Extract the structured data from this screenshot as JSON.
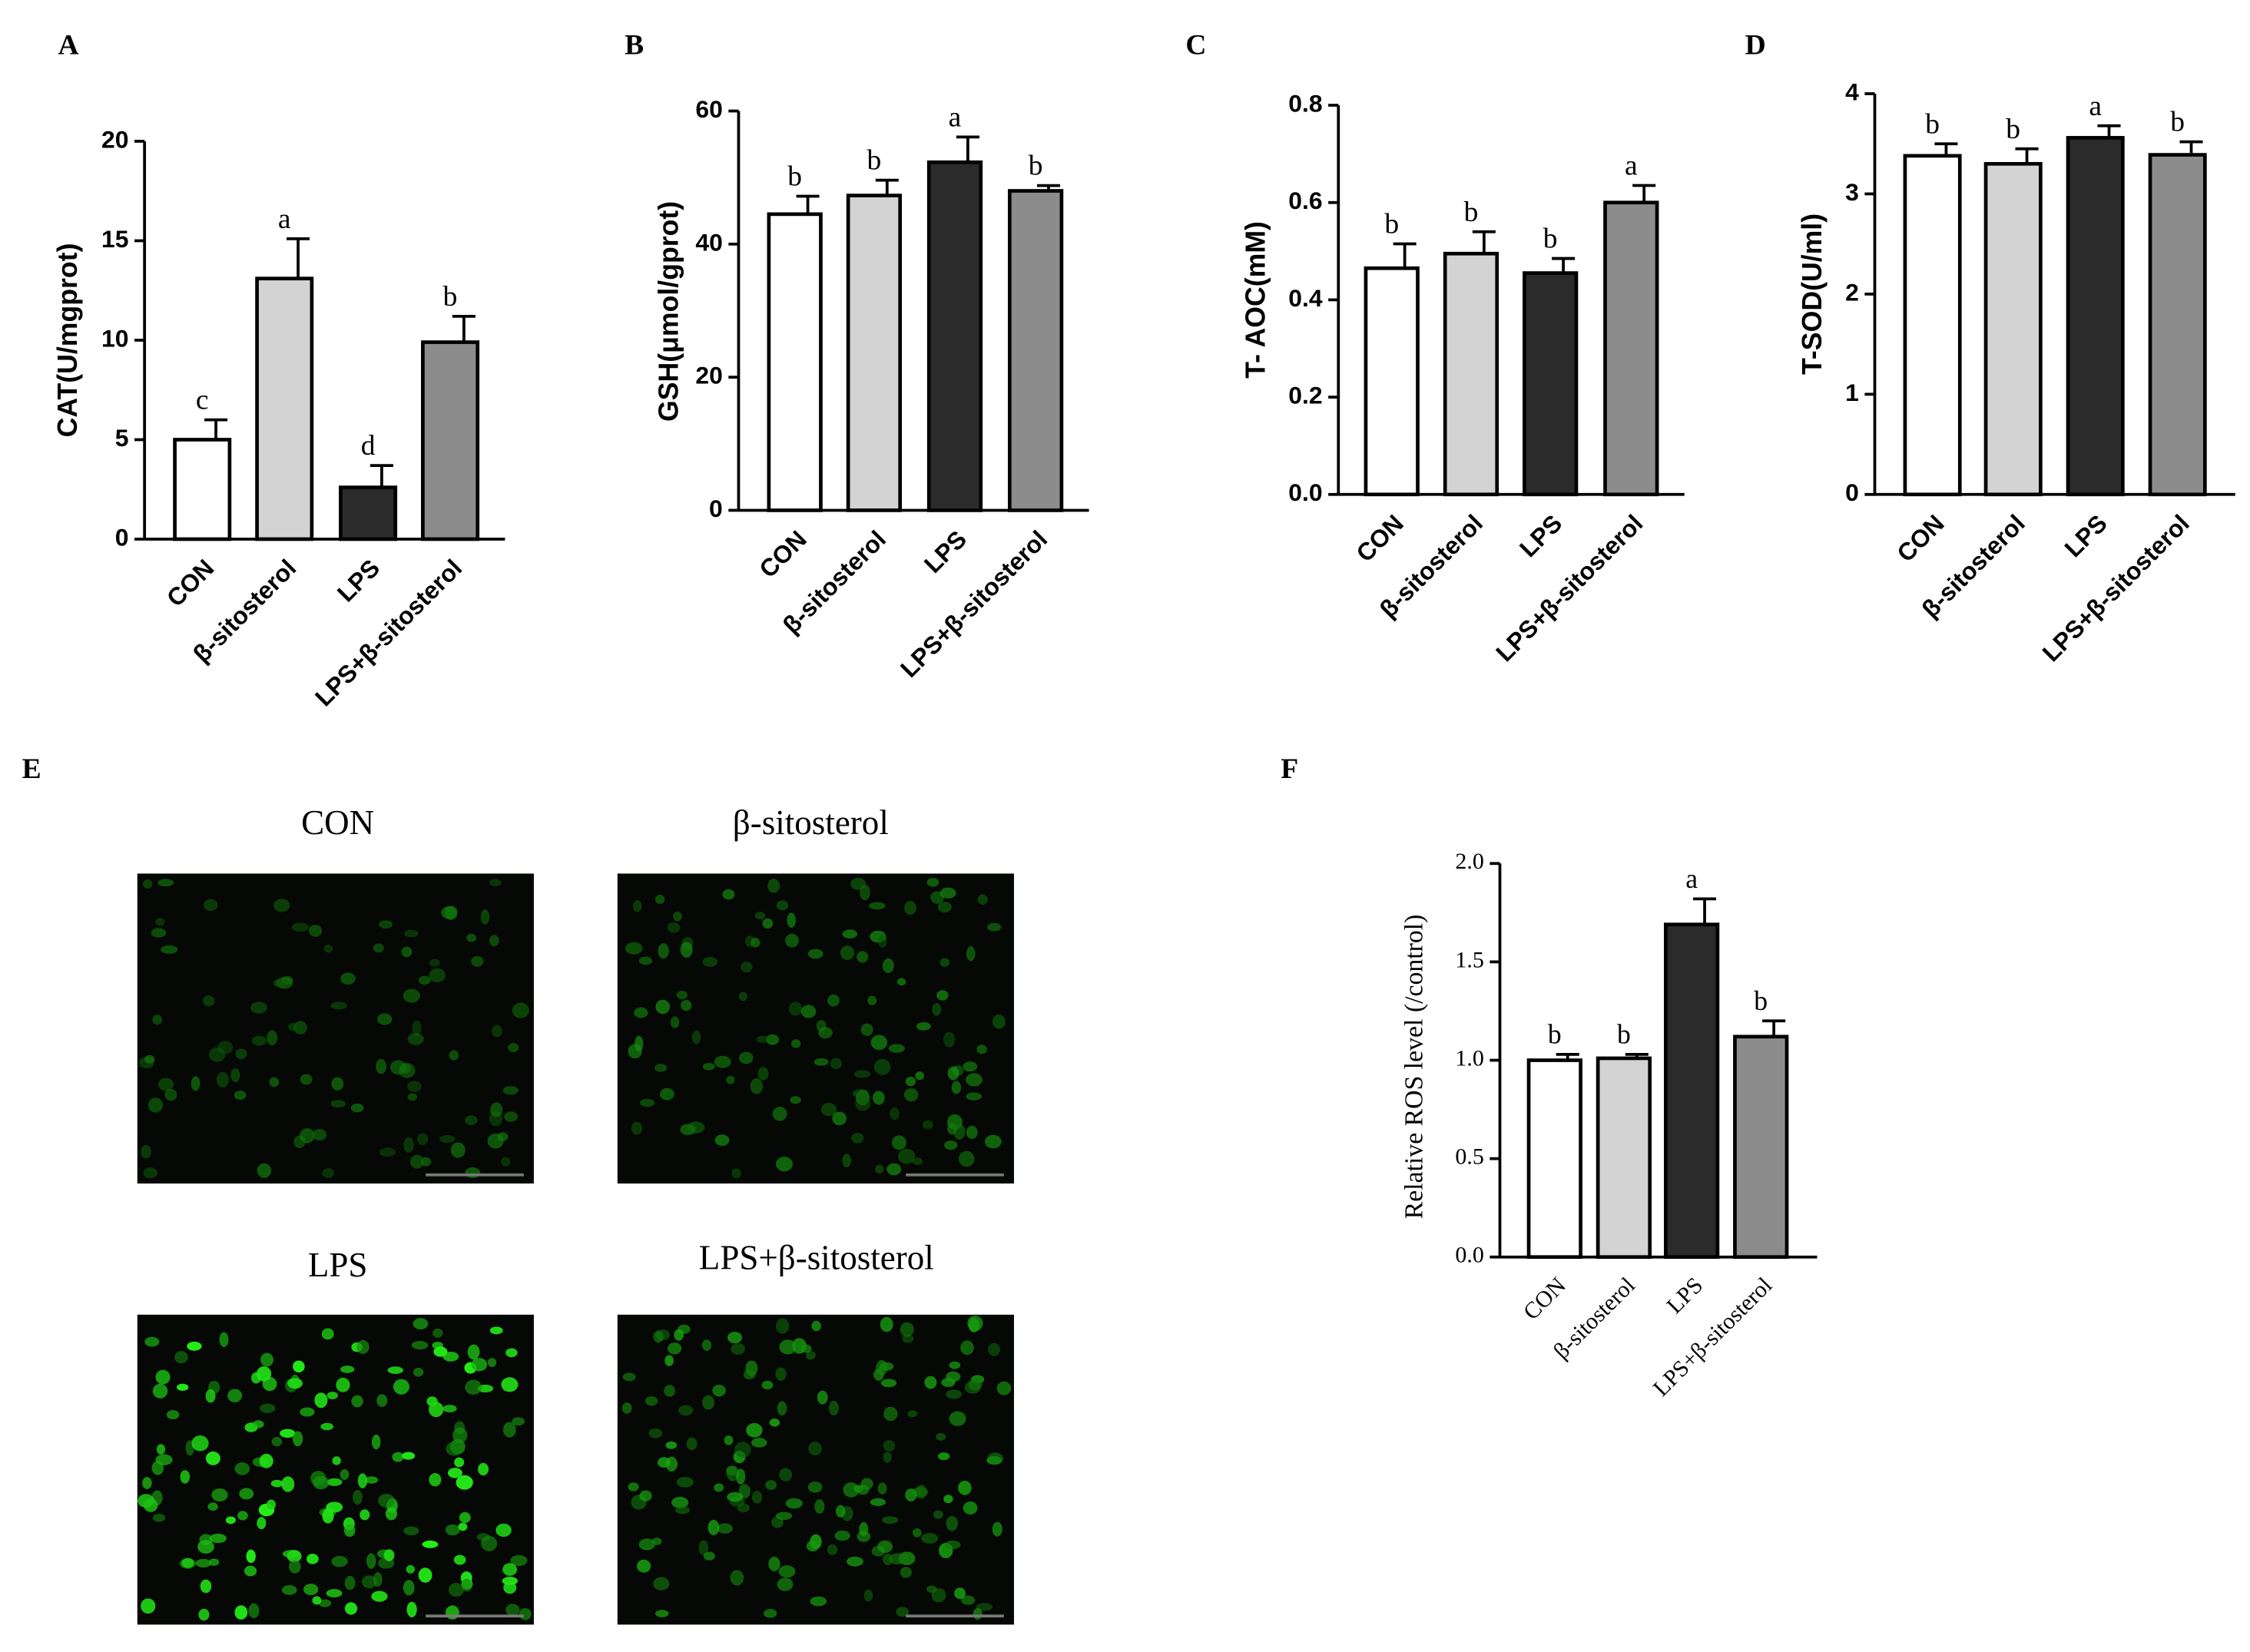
{
  "chart_data": [
    {
      "type": "bar",
      "panel_label": "A",
      "y_label": "CAT(U/mgprot)",
      "categories": [
        "CON",
        "β-sitosterol",
        "LPS",
        "LPS+β-sitosterol"
      ],
      "values": [
        5.0,
        13.1,
        2.6,
        9.9
      ],
      "errors": [
        1.0,
        2.0,
        1.1,
        1.3
      ],
      "annotations": [
        "c",
        "a",
        "d",
        "b"
      ],
      "colors": [
        "#ffffff",
        "#d3d3d3",
        "#2b2b2b",
        "#8c8c8c"
      ],
      "ylim": [
        0,
        20
      ],
      "yticks": [
        0,
        5,
        10,
        15,
        20
      ]
    },
    {
      "type": "bar",
      "panel_label": "B",
      "y_label": "GSH(μmol/gprot)",
      "categories": [
        "CON",
        "β-sitosterol",
        "LPS",
        "LPS+β-sitosterol"
      ],
      "values": [
        44.5,
        47.3,
        52.3,
        48.0
      ],
      "errors": [
        2.7,
        2.3,
        3.8,
        0.8
      ],
      "annotations": [
        "b",
        "b",
        "a",
        "b"
      ],
      "colors": [
        "#ffffff",
        "#d3d3d3",
        "#2b2b2b",
        "#8c8c8c"
      ],
      "ylim": [
        0,
        60
      ],
      "yticks": [
        0,
        20,
        40,
        60
      ]
    },
    {
      "type": "bar",
      "panel_label": "C",
      "y_label": "T- AOC(mM)",
      "categories": [
        "CON",
        "β-sitosterol",
        "LPS",
        "LPS+β-sitosterol"
      ],
      "values": [
        0.465,
        0.495,
        0.455,
        0.6
      ],
      "errors": [
        0.05,
        0.045,
        0.03,
        0.035
      ],
      "annotations": [
        "b",
        "b",
        "b",
        "a"
      ],
      "colors": [
        "#ffffff",
        "#d3d3d3",
        "#2b2b2b",
        "#8c8c8c"
      ],
      "ylim": [
        0,
        0.8
      ],
      "yticks": [
        {
          "value": 0,
          "label": "0.0"
        },
        0.2,
        0.4,
        0.6,
        0.8
      ]
    },
    {
      "type": "bar",
      "panel_label": "D",
      "y_label": "T-SOD(U/ml)",
      "categories": [
        "CON",
        "β-sitosterol",
        "LPS",
        "LPS+β-sitosterol"
      ],
      "values": [
        3.38,
        3.3,
        3.56,
        3.39
      ],
      "errors": [
        0.12,
        0.15,
        0.12,
        0.13
      ],
      "annotations": [
        "b",
        "b",
        "a",
        "b"
      ],
      "colors": [
        "#ffffff",
        "#d3d3d3",
        "#2b2b2b",
        "#8c8c8c"
      ],
      "ylim": [
        0,
        4
      ],
      "yticks": [
        0,
        1,
        2,
        3,
        4
      ]
    },
    {
      "type": "bar",
      "panel_label": "F",
      "y_label": "Relative ROS level (/control)",
      "categories": [
        "CON",
        "β-sitosterol",
        "LPS",
        "LPS+β-sitosterol"
      ],
      "values": [
        1.0,
        1.01,
        1.69,
        1.12
      ],
      "errors": [
        0.03,
        0.02,
        0.13,
        0.08
      ],
      "annotations": [
        "b",
        "b",
        "a",
        "b"
      ],
      "colors": [
        "#ffffff",
        "#d3d3d3",
        "#2b2b2b",
        "#8c8c8c"
      ],
      "ylim": [
        0,
        2
      ],
      "yticks": [
        {
          "value": 0,
          "label": "0.0"
        },
        0.5,
        {
          "value": 1,
          "label": "1.0"
        },
        1.5,
        {
          "value": 2,
          "label": "2.0"
        }
      ]
    }
  ],
  "image_panel": {
    "panel_label": "E",
    "titles": [
      "CON",
      "β-sitosterol",
      "LPS",
      "LPS+β-sitosterol"
    ]
  }
}
